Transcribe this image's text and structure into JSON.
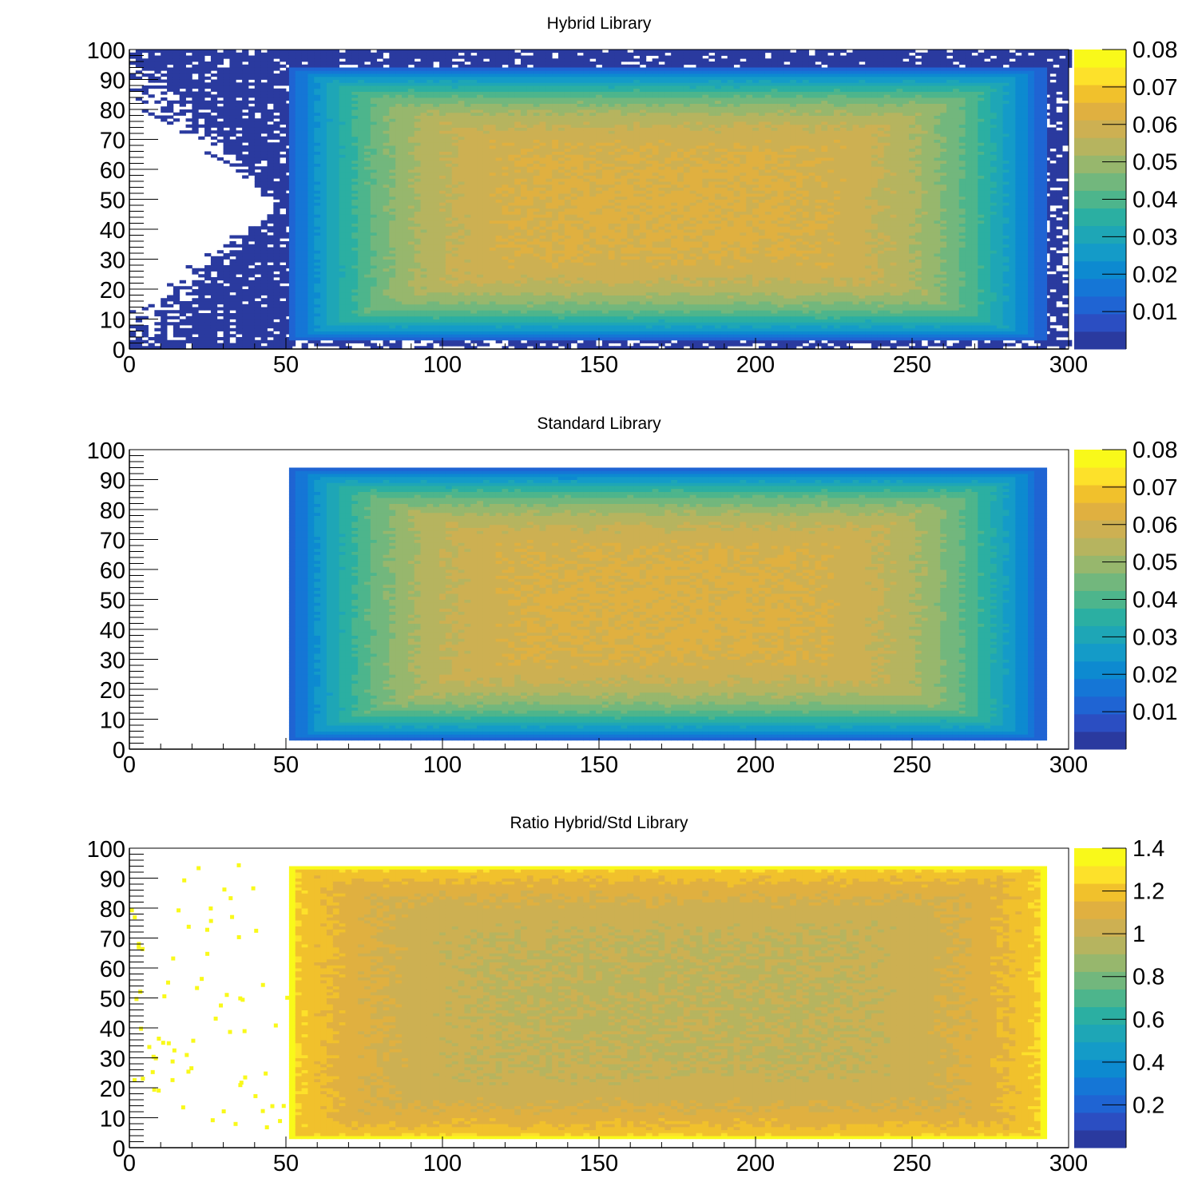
{
  "chart_data": [
    {
      "type": "heatmap",
      "title": "Hybrid Library",
      "xlabel": "",
      "ylabel": "",
      "xlim": [
        0,
        300
      ],
      "ylim": [
        0,
        100
      ],
      "x_ticks": [
        "0",
        "50",
        "100",
        "150",
        "200",
        "250",
        "300"
      ],
      "y_ticks": [
        "0",
        "10",
        "20",
        "30",
        "40",
        "50",
        "60",
        "70",
        "80",
        "90",
        "100"
      ],
      "z_range": [
        0,
        0.08
      ],
      "z_ticks": [
        "0.01",
        "0.02",
        "0.03",
        "0.04",
        "0.05",
        "0.06",
        "0.07",
        "0.08"
      ],
      "filled_region": {
        "x": [
          51,
          292
        ],
        "y": [
          3,
          94
        ]
      },
      "center_value": 0.062,
      "edge_value": 0.01,
      "outside_value": 0.001,
      "outside_noise": true
    },
    {
      "type": "heatmap",
      "title": "Standard Library",
      "xlabel": "",
      "ylabel": "",
      "xlim": [
        0,
        300
      ],
      "ylim": [
        0,
        100
      ],
      "x_ticks": [
        "0",
        "50",
        "100",
        "150",
        "200",
        "250",
        "300"
      ],
      "y_ticks": [
        "0",
        "10",
        "20",
        "30",
        "40",
        "50",
        "60",
        "70",
        "80",
        "90",
        "100"
      ],
      "z_range": [
        0,
        0.08
      ],
      "z_ticks": [
        "0.01",
        "0.02",
        "0.03",
        "0.04",
        "0.05",
        "0.06",
        "0.07",
        "0.08"
      ],
      "filled_region": {
        "x": [
          51,
          292
        ],
        "y": [
          3,
          94
        ]
      },
      "center_value": 0.062,
      "edge_value": 0.01,
      "outside_value": null,
      "outside_noise": false
    },
    {
      "type": "heatmap",
      "title": "Ratio Hybrid/Std Library",
      "xlabel": "",
      "ylabel": "",
      "xlim": [
        0,
        300
      ],
      "ylim": [
        0,
        100
      ],
      "x_ticks": [
        "0",
        "50",
        "100",
        "150",
        "200",
        "250",
        "300"
      ],
      "y_ticks": [
        "0",
        "10",
        "20",
        "30",
        "40",
        "50",
        "60",
        "70",
        "80",
        "90",
        "100"
      ],
      "z_range": [
        0,
        1.4
      ],
      "z_ticks": [
        "0.2",
        "0.4",
        "0.6",
        "0.8",
        "1",
        "1.2",
        "1.4"
      ],
      "filled_region": {
        "x": [
          51,
          292
        ],
        "y": [
          3,
          94
        ]
      },
      "center_value": 0.98,
      "edge_value": 1.25,
      "border_value": 1.4,
      "outside_value": 1.4,
      "outside_sparse": true
    }
  ],
  "colors": {
    "palette": [
      "#2a3a9f",
      "#2b4ec2",
      "#1f64d3",
      "#1576d6",
      "#0d8ad0",
      "#149bc8",
      "#1ea6b6",
      "#2bafa2",
      "#4db58c",
      "#72b77d",
      "#97b76d",
      "#b6b45f",
      "#cdb052",
      "#e0b040",
      "#f1c12c",
      "#fde12a",
      "#f9f91a"
    ],
    "frame": "#000000",
    "background": "#ffffff"
  }
}
